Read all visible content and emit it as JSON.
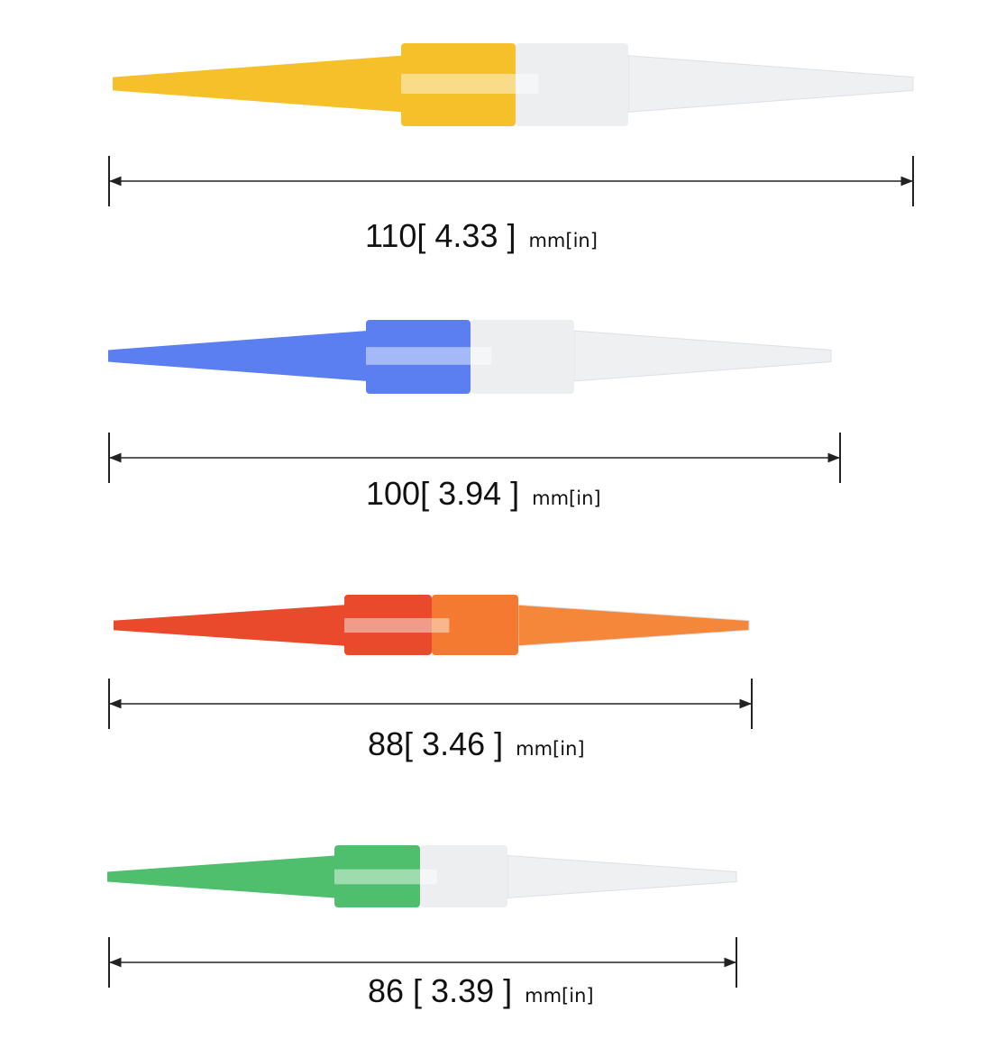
{
  "tools": [
    {
      "dimension": "110[ 4.33 ]",
      "unit": "mm[in]"
    },
    {
      "dimension": "100[ 3.94 ]",
      "unit": "mm[in]"
    },
    {
      "dimension": "88[ 3.46 ]",
      "unit": "mm[in]"
    },
    {
      "dimension": "86 [ 3.39 ]",
      "unit": "mm[in]"
    }
  ]
}
